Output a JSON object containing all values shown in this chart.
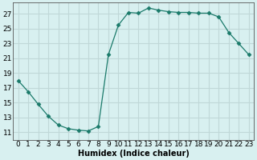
{
  "x": [
    0,
    1,
    2,
    3,
    4,
    5,
    6,
    7,
    8,
    9,
    10,
    11,
    12,
    13,
    14,
    15,
    16,
    17,
    18,
    19,
    20,
    21,
    22,
    23
  ],
  "y": [
    18.0,
    16.5,
    14.8,
    13.2,
    12.0,
    11.5,
    11.3,
    11.2,
    11.8,
    21.5,
    25.5,
    27.2,
    27.1,
    27.8,
    27.5,
    27.3,
    27.2,
    27.2,
    27.1,
    27.1,
    26.6,
    24.5,
    23.0,
    21.5
  ],
  "line_color": "#1a7a6a",
  "marker": "D",
  "marker_size": 2.5,
  "bg_color": "#d8f0f0",
  "grid_color": "#c0d8d8",
  "xlabel": "Humidex (Indice chaleur)",
  "ylabel_ticks": [
    11,
    13,
    15,
    17,
    19,
    21,
    23,
    25,
    27
  ],
  "xticks": [
    0,
    1,
    2,
    3,
    4,
    5,
    6,
    7,
    8,
    9,
    10,
    11,
    12,
    13,
    14,
    15,
    16,
    17,
    18,
    19,
    20,
    21,
    22,
    23
  ],
  "ylim": [
    10.0,
    28.5
  ],
  "xlim": [
    -0.5,
    23.5
  ],
  "xlabel_fontsize": 7,
  "tick_fontsize": 6.5
}
